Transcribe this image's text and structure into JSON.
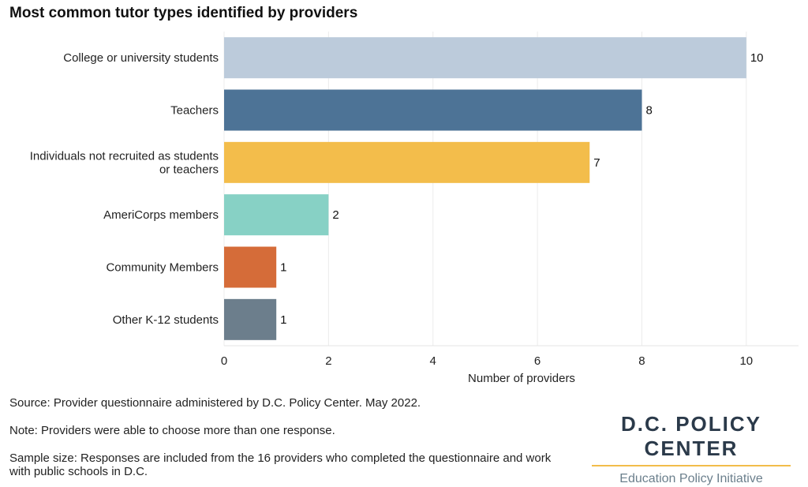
{
  "chart_data": {
    "type": "bar",
    "orientation": "horizontal",
    "title": "Most common tutor types identified by providers",
    "xlabel": "Number of providers",
    "xlim": [
      0,
      11
    ],
    "xticks": [
      "0",
      "2",
      "4",
      "6",
      "8",
      "10"
    ],
    "grid": true,
    "categories": [
      {
        "label": "College or university students",
        "value": 10,
        "color": "#bccbdb"
      },
      {
        "label": "Teachers",
        "value": 8,
        "color": "#4d7396"
      },
      {
        "label": "Individuals not recruited as students or teachers",
        "lines": [
          "Individuals not recruited as students",
          "or teachers"
        ],
        "value": 7,
        "color": "#f3bd4b"
      },
      {
        "label": "AmeriCorps members",
        "value": 2,
        "color": "#87d1c5"
      },
      {
        "label": "Community Members",
        "value": 1,
        "color": "#d56c39"
      },
      {
        "label": "Other K-12 students",
        "value": 1,
        "color": "#6c7e8c"
      }
    ]
  },
  "notes": {
    "source": "Source: Provider questionnaire administered by D.C. Policy Center. May 2022.",
    "choice": "Note: Providers were able to choose more than one response.",
    "sample": "Sample size: Responses are included from the 16 providers who completed the questionnaire and work with public schools in D.C."
  },
  "brand": {
    "name": "D.C. POLICY CENTER",
    "subtitle": "Education Policy Initiative",
    "rule_color": "#f2bd4b"
  }
}
